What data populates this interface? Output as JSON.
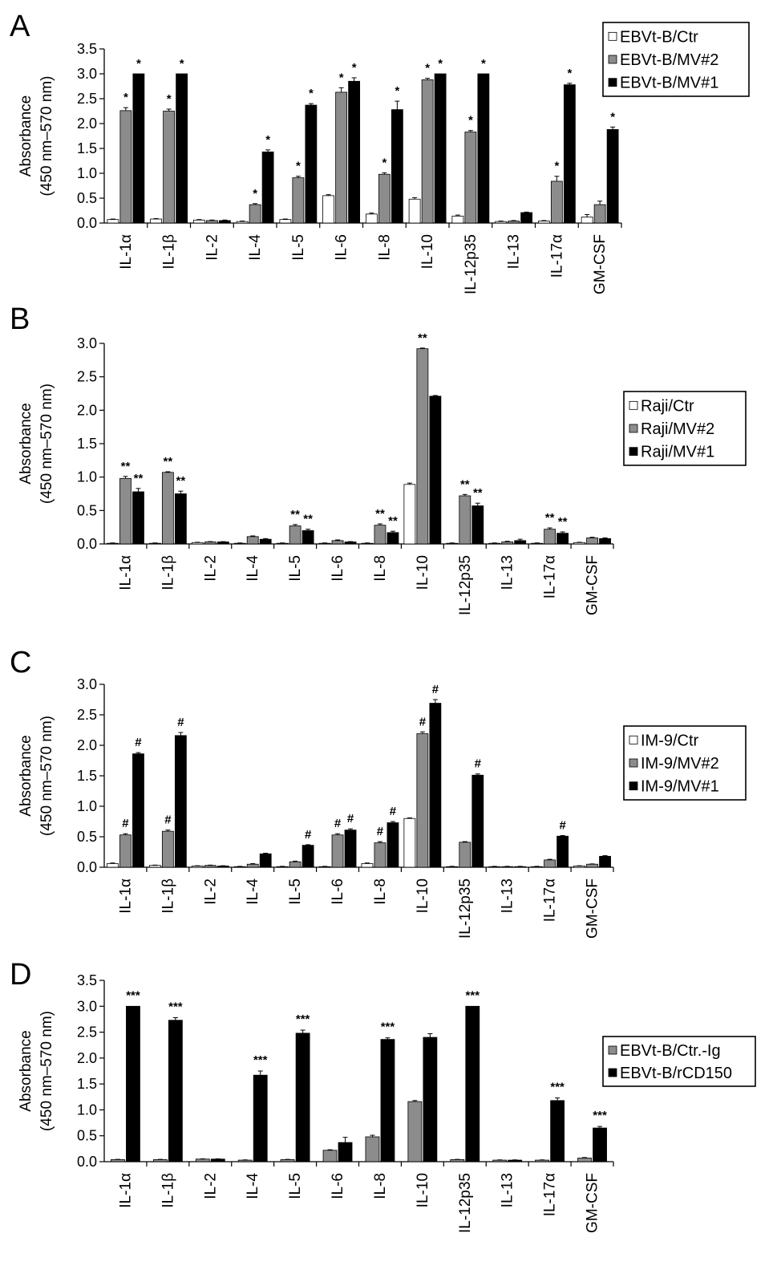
{
  "colors": {
    "ctr": "#ffffff",
    "mid": "#8c8c8c",
    "high": "#000000",
    "stroke": "#000000"
  },
  "categories": [
    "IL-1α",
    "IL-1β",
    "IL-2",
    "IL-4",
    "IL-5",
    "IL-6",
    "IL-8",
    "IL-10",
    "IL-12p35",
    "IL-13",
    "IL-17α",
    "GM-CSF"
  ],
  "ylabel_line1": "Absorbance",
  "ylabel_line2": "(450 nm–570 nm)",
  "chart_data": [
    {
      "type": "bar",
      "panel_label": "A",
      "ylim": [
        0,
        3.5
      ],
      "yticks": [
        "0.0",
        "0.5",
        "1.0",
        "1.5",
        "2.0",
        "2.5",
        "3.0",
        "3.5"
      ],
      "legend": "top-right",
      "series": [
        {
          "name": "EBVt-B/Ctr",
          "style": "ctr",
          "values": [
            0.07,
            0.08,
            0.06,
            0.03,
            0.07,
            0.55,
            0.18,
            0.48,
            0.14,
            0.03,
            0.04,
            0.12
          ],
          "errors": [
            0.01,
            0.01,
            0.01,
            0.01,
            0.01,
            0.02,
            0.02,
            0.03,
            0.02,
            0.01,
            0.01,
            0.05
          ],
          "sig": [
            "",
            "",
            "",
            "",
            "",
            "",
            "",
            "",
            "",
            "",
            "",
            ""
          ]
        },
        {
          "name": "EBVt-B/MV#2",
          "style": "mid",
          "values": [
            2.26,
            2.25,
            0.05,
            0.37,
            0.91,
            2.63,
            0.98,
            2.88,
            1.83,
            0.04,
            0.84,
            0.37
          ],
          "errors": [
            0.06,
            0.04,
            0.01,
            0.02,
            0.03,
            0.09,
            0.03,
            0.03,
            0.03,
            0.01,
            0.1,
            0.07
          ],
          "sig": [
            "*",
            "*",
            "",
            "*",
            "*",
            "*",
            "*",
            "*",
            "*",
            "",
            "*",
            ""
          ]
        },
        {
          "name": "EBVt-B/MV#1",
          "style": "high",
          "values": [
            3.0,
            3.0,
            0.05,
            1.43,
            2.37,
            2.85,
            2.28,
            3.0,
            3.0,
            0.21,
            2.78,
            1.88
          ],
          "errors": [
            0.0,
            0.0,
            0.01,
            0.04,
            0.03,
            0.07,
            0.17,
            0.0,
            0.0,
            0.01,
            0.03,
            0.05
          ],
          "sig": [
            "*",
            "*",
            "",
            "*",
            "*",
            "*",
            "*",
            "*",
            "*",
            "",
            "*",
            "*"
          ]
        }
      ]
    },
    {
      "type": "bar",
      "panel_label": "B",
      "ylim": [
        0,
        3.0
      ],
      "yticks": [
        "0.0",
        "0.5",
        "1.0",
        "1.5",
        "2.0",
        "2.5",
        "3.0"
      ],
      "legend": "right",
      "series": [
        {
          "name": "Raji/Ctr",
          "style": "ctr",
          "values": [
            0.01,
            0.01,
            0.02,
            0.01,
            0.01,
            0.01,
            0.01,
            0.89,
            0.01,
            0.01,
            0.01,
            0.02
          ],
          "errors": [
            0.005,
            0.005,
            0.005,
            0.005,
            0.005,
            0.005,
            0.005,
            0.02,
            0.005,
            0.005,
            0.005,
            0.005
          ],
          "sig": [
            "",
            "",
            "",
            "",
            "",
            "",
            "",
            "",
            "",
            "",
            "",
            ""
          ]
        },
        {
          "name": "Raji/MV#2",
          "style": "mid",
          "values": [
            0.98,
            1.07,
            0.03,
            0.11,
            0.27,
            0.05,
            0.28,
            2.92,
            0.72,
            0.03,
            0.22,
            0.09
          ],
          "errors": [
            0.03,
            0.01,
            0.005,
            0.01,
            0.02,
            0.01,
            0.02,
            0.01,
            0.02,
            0.01,
            0.02,
            0.01
          ],
          "sig": [
            "**",
            "**",
            "",
            "",
            "**",
            "",
            "**",
            "**",
            "**",
            "",
            "**",
            ""
          ]
        },
        {
          "name": "Raji/MV#1",
          "style": "high",
          "values": [
            0.78,
            0.75,
            0.03,
            0.07,
            0.2,
            0.03,
            0.17,
            2.21,
            0.57,
            0.05,
            0.16,
            0.08
          ],
          "errors": [
            0.05,
            0.04,
            0.005,
            0.01,
            0.02,
            0.005,
            0.02,
            0.01,
            0.04,
            0.02,
            0.02,
            0.01
          ],
          "sig": [
            "**",
            "**",
            "",
            "",
            "**",
            "",
            "**",
            "",
            "**",
            "",
            "**",
            ""
          ]
        }
      ]
    },
    {
      "type": "bar",
      "panel_label": "C",
      "ylim": [
        0,
        3.0
      ],
      "yticks": [
        "0.0",
        "0.5",
        "1.0",
        "1.5",
        "2.0",
        "2.5",
        "3.0"
      ],
      "legend": "right",
      "series": [
        {
          "name": "IM-9/Ctr",
          "style": "ctr",
          "values": [
            0.06,
            0.03,
            0.02,
            0.01,
            0.01,
            0.01,
            0.06,
            0.8,
            0.01,
            0.01,
            0.01,
            0.02
          ],
          "errors": [
            0.01,
            0.005,
            0.005,
            0.005,
            0.005,
            0.005,
            0.01,
            0.01,
            0.005,
            0.005,
            0.005,
            0.005
          ],
          "sig": [
            "",
            "",
            "",
            "",
            "",
            "",
            "",
            "",
            "",
            "",
            "",
            ""
          ]
        },
        {
          "name": "IM-9/MV#2",
          "style": "mid",
          "values": [
            0.53,
            0.59,
            0.03,
            0.05,
            0.09,
            0.53,
            0.4,
            2.19,
            0.41,
            0.01,
            0.12,
            0.05
          ],
          "errors": [
            0.02,
            0.02,
            0.005,
            0.01,
            0.01,
            0.02,
            0.02,
            0.03,
            0.01,
            0.005,
            0.01,
            0.005
          ],
          "sig": [
            "#",
            "#",
            "",
            "",
            "",
            "#",
            "#",
            "#",
            "",
            "",
            "",
            ""
          ]
        },
        {
          "name": "IM-9/MV#1",
          "style": "high",
          "values": [
            1.86,
            2.16,
            0.02,
            0.22,
            0.36,
            0.61,
            0.73,
            2.69,
            1.51,
            0.01,
            0.51,
            0.18
          ],
          "errors": [
            0.02,
            0.05,
            0.005,
            0.01,
            0.01,
            0.02,
            0.02,
            0.06,
            0.02,
            0.005,
            0.01,
            0.01
          ],
          "sig": [
            "#",
            "#",
            "",
            "",
            "#",
            "#",
            "#",
            "#",
            "#",
            "",
            "#",
            ""
          ]
        }
      ]
    },
    {
      "type": "bar",
      "panel_label": "D",
      "ylim": [
        0,
        3.5
      ],
      "yticks": [
        "0.0",
        "0.5",
        "1.0",
        "1.5",
        "2.0",
        "2.5",
        "3.0",
        "3.5"
      ],
      "legend": "right",
      "series": [
        {
          "name": "EBVt-B/Ctr.-Ig",
          "style": "mid",
          "values": [
            0.04,
            0.04,
            0.05,
            0.03,
            0.04,
            0.22,
            0.48,
            1.16,
            0.04,
            0.03,
            0.03,
            0.07
          ],
          "errors": [
            0.005,
            0.005,
            0.005,
            0.005,
            0.005,
            0.01,
            0.03,
            0.02,
            0.005,
            0.005,
            0.005,
            0.01
          ],
          "sig": [
            "",
            "",
            "",
            "",
            "",
            "",
            "",
            "",
            "",
            "",
            "",
            ""
          ]
        },
        {
          "name": "EBVt-B/rCD150",
          "style": "high",
          "values": [
            3.0,
            2.73,
            0.05,
            1.67,
            2.48,
            0.37,
            2.36,
            2.4,
            3.0,
            0.03,
            1.18,
            0.65
          ],
          "errors": [
            0.0,
            0.05,
            0.005,
            0.08,
            0.06,
            0.1,
            0.03,
            0.07,
            0.0,
            0.005,
            0.05,
            0.03
          ],
          "sig": [
            "***",
            "***",
            "",
            "***",
            "***",
            "",
            "***",
            "",
            "***",
            "",
            "***",
            "***"
          ]
        }
      ]
    }
  ]
}
